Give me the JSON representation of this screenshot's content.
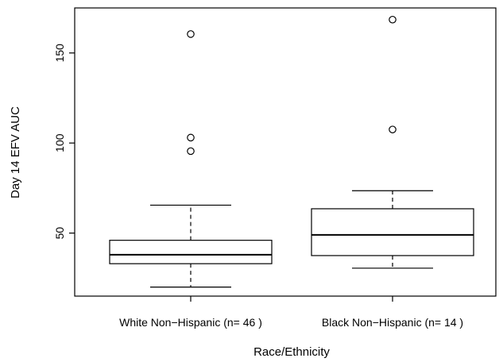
{
  "chart_data": {
    "type": "box",
    "title": "",
    "xlabel": "Race/Ethnicity",
    "ylabel": "Day 14 EFV AUC",
    "ylim": [
      15,
      175
    ],
    "yticks": [
      50,
      100,
      150
    ],
    "categories": [
      "White Non−Hispanic (n= 46 )",
      "Black Non−Hispanic (n= 14 )"
    ],
    "boxes": [
      {
        "label": "White Non−Hispanic (n= 46 )",
        "whisker_low": 20,
        "q1": 33,
        "median": 38,
        "q3": 46,
        "whisker_high": 65.5,
        "outliers": [
          95.5,
          103,
          160.5
        ]
      },
      {
        "label": "Black Non−Hispanic (n= 14 )",
        "whisker_low": 30.5,
        "q1": 37.5,
        "median": 49,
        "q3": 63.5,
        "whisker_high": 73.5,
        "outliers": [
          107.5,
          168.5
        ]
      }
    ],
    "grid": false,
    "legend": "none"
  }
}
